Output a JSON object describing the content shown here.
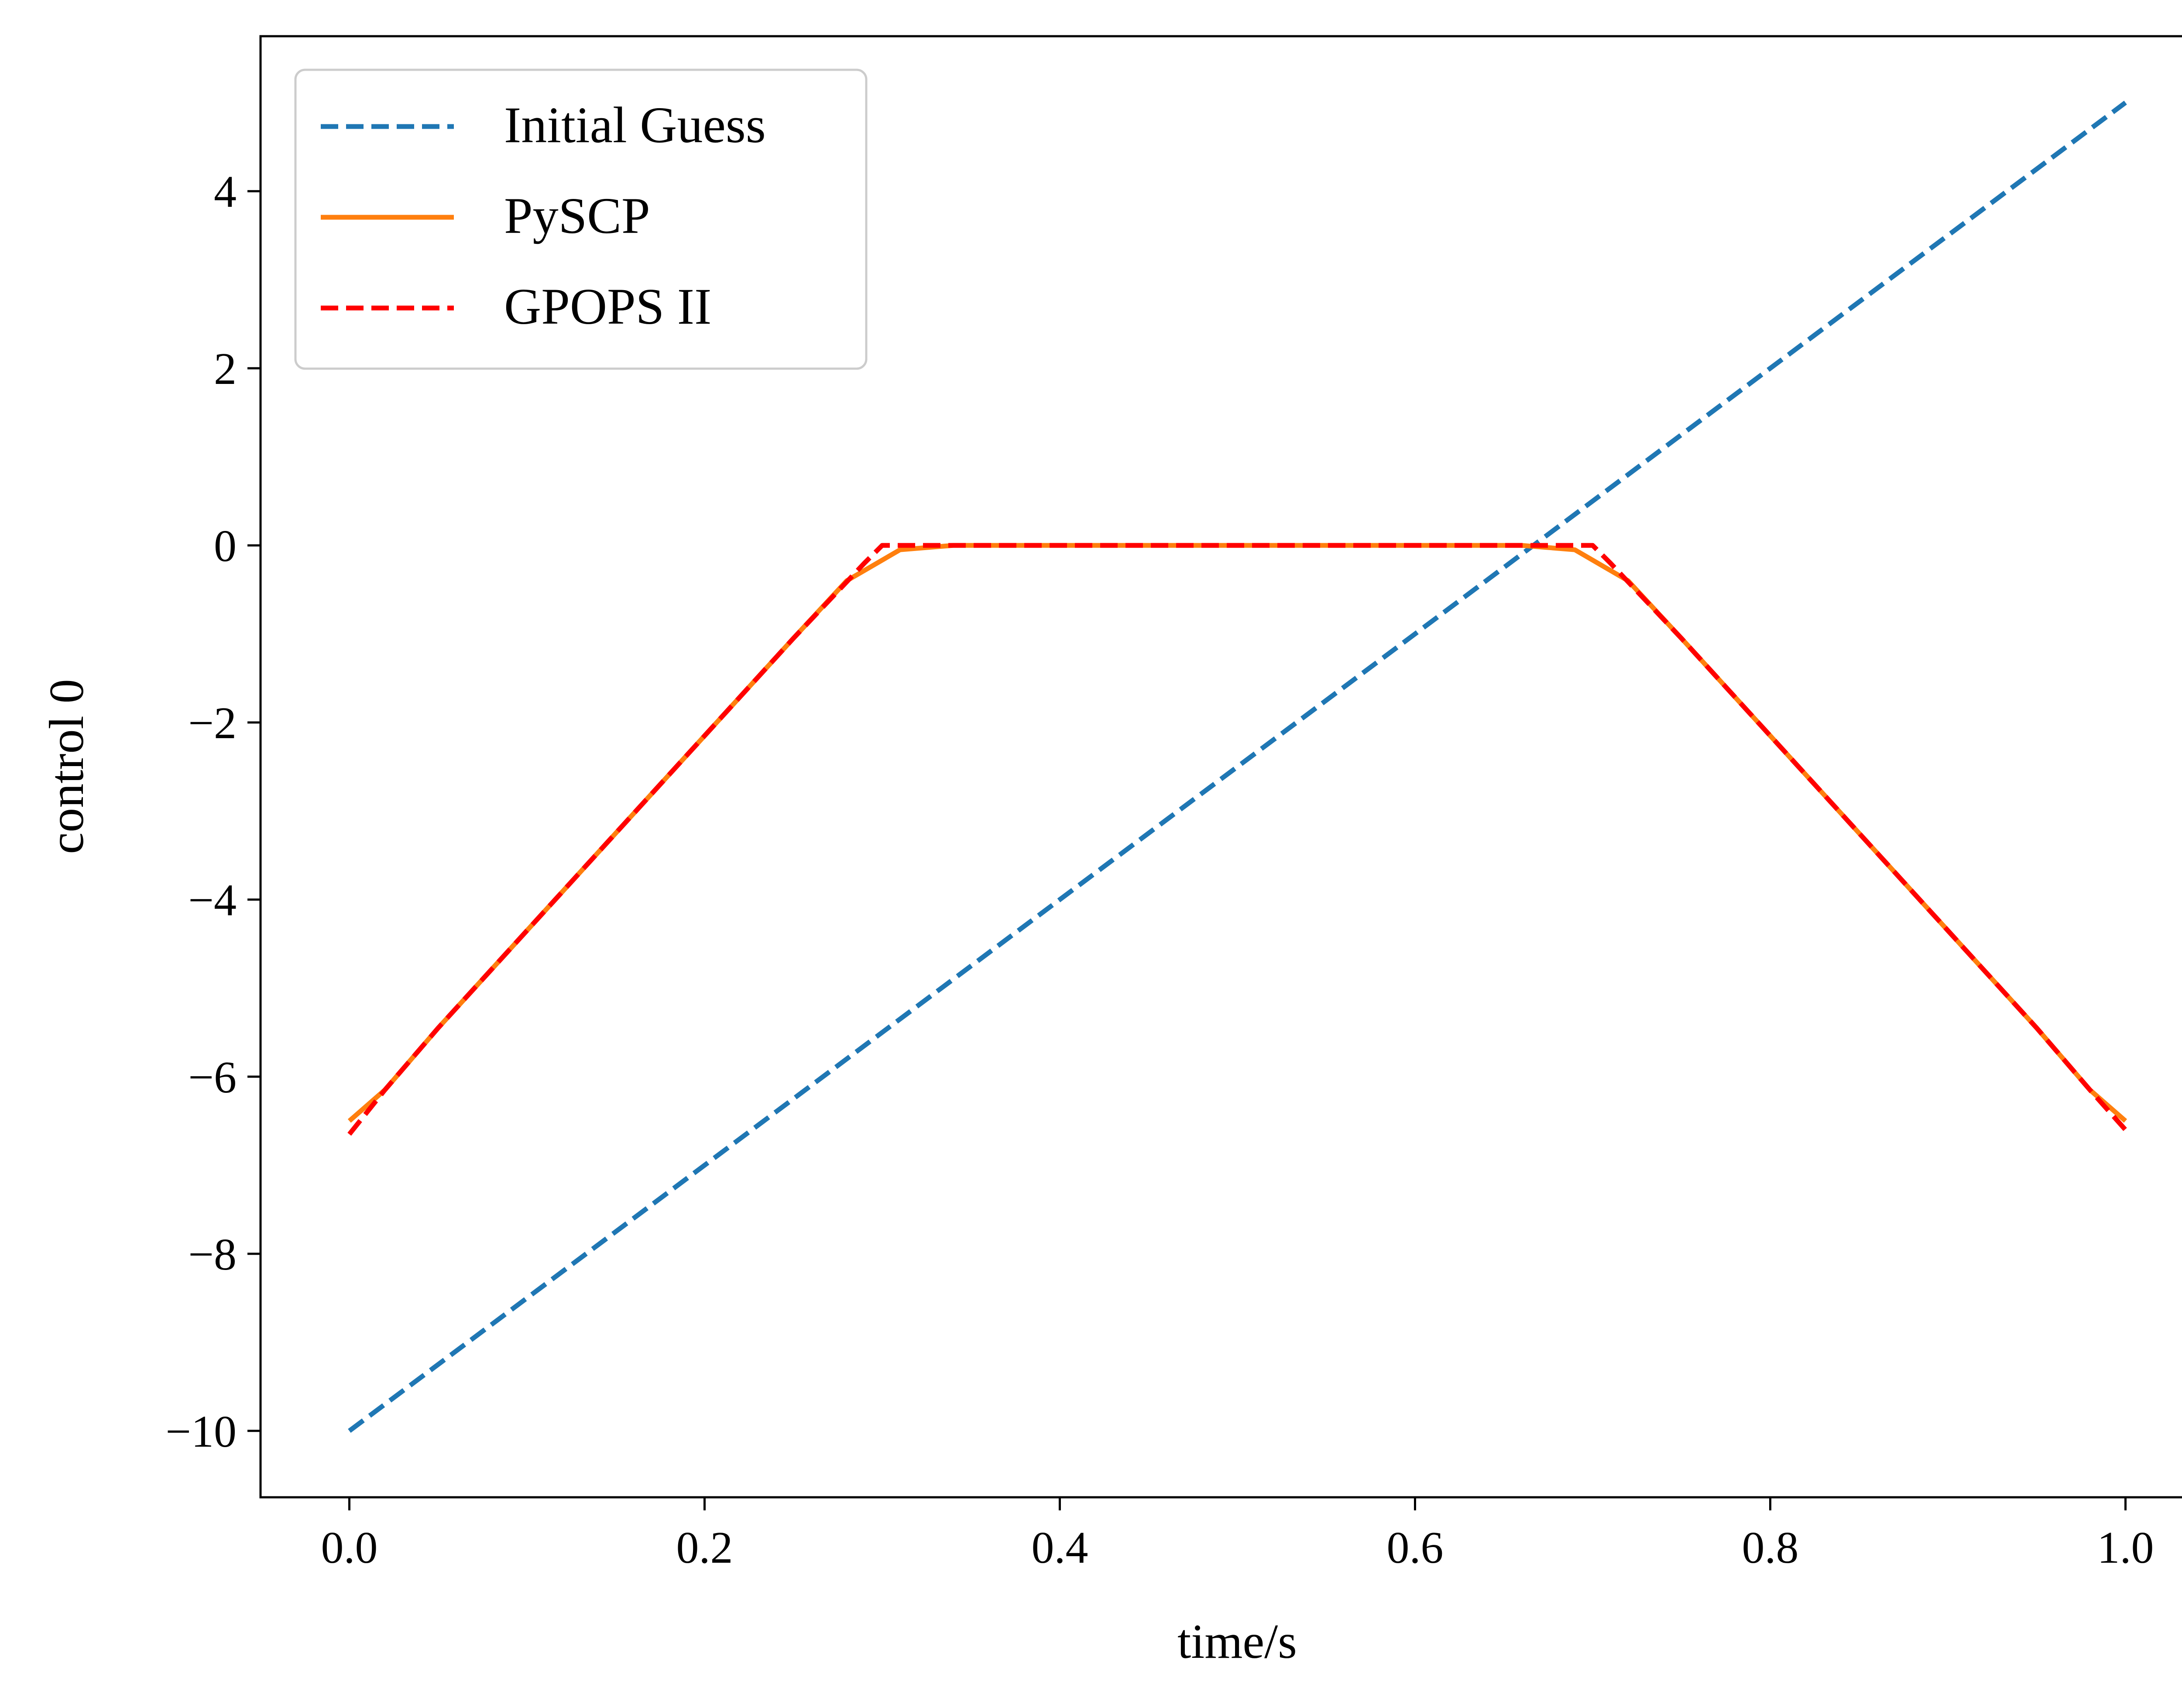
{
  "chart_data": {
    "type": "line",
    "title": "",
    "xlabel": "time/s",
    "ylabel": "control 0",
    "xlim": [
      -0.05,
      1.05
    ],
    "ylim": [
      -10.75,
      5.75
    ],
    "xticks": [
      0.0,
      0.2,
      0.4,
      0.6,
      0.8,
      1.0
    ],
    "xtick_labels": [
      "0.0",
      "0.2",
      "0.4",
      "0.6",
      "0.8",
      "1.0"
    ],
    "yticks": [
      -10,
      -8,
      -6,
      -4,
      -2,
      0,
      2,
      4
    ],
    "ytick_labels": [
      "−10",
      "−8",
      "−6",
      "−4",
      "−2",
      "0",
      "2",
      "4"
    ],
    "grid": false,
    "legend": {
      "position": "top-left",
      "entries": [
        "Initial Guess",
        "PySCP",
        "GPOPS II"
      ]
    },
    "series": [
      {
        "name": "Initial Guess",
        "color": "#1f77b4",
        "style": "dashed",
        "x": [
          0.0,
          1.0
        ],
        "y": [
          -10.0,
          5.0
        ]
      },
      {
        "name": "PySCP",
        "color": "#ff7f0e",
        "style": "solid",
        "x": [
          0.0,
          0.02,
          0.05,
          0.1,
          0.15,
          0.2,
          0.25,
          0.28,
          0.31,
          0.34,
          0.4,
          0.5,
          0.6,
          0.66,
          0.69,
          0.72,
          0.75,
          0.8,
          0.85,
          0.9,
          0.95,
          0.98,
          1.0
        ],
        "y": [
          -6.5,
          -6.15,
          -5.45,
          -4.35,
          -3.25,
          -2.15,
          -1.05,
          -0.4,
          -0.05,
          0.0,
          0.0,
          0.0,
          0.0,
          0.0,
          -0.05,
          -0.4,
          -1.05,
          -2.15,
          -3.25,
          -4.35,
          -5.45,
          -6.15,
          -6.5
        ]
      },
      {
        "name": "GPOPS II",
        "color": "#ff0000",
        "style": "dashed",
        "x": [
          0.0,
          0.02,
          0.05,
          0.1,
          0.15,
          0.2,
          0.25,
          0.29,
          0.3,
          0.7,
          0.71,
          0.75,
          0.8,
          0.85,
          0.9,
          0.95,
          0.98,
          1.0
        ],
        "y": [
          -6.65,
          -6.15,
          -5.45,
          -4.35,
          -3.25,
          -2.15,
          -1.05,
          -0.2,
          0.0,
          0.0,
          -0.2,
          -1.05,
          -2.15,
          -3.25,
          -4.35,
          -5.45,
          -6.15,
          -6.6
        ]
      }
    ]
  }
}
